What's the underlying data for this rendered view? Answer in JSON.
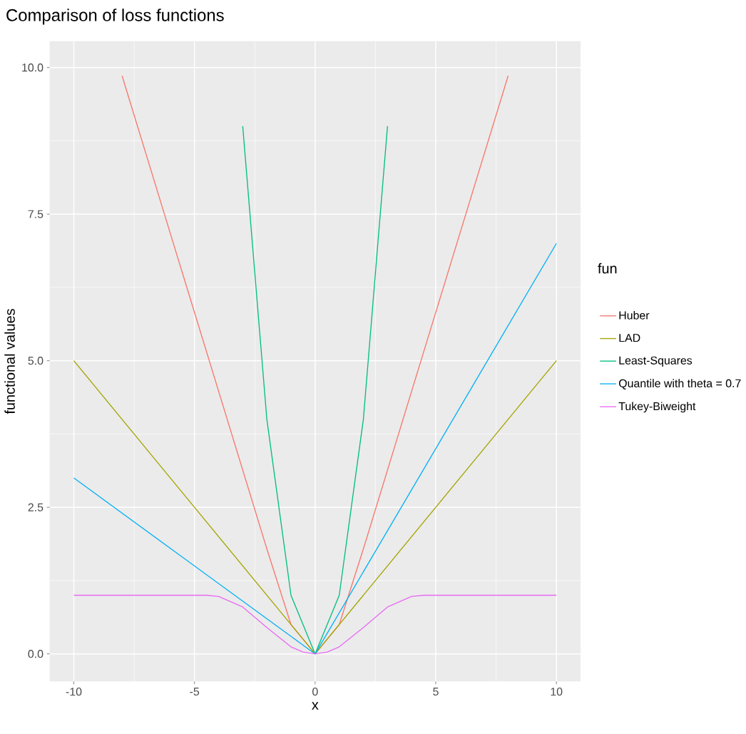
{
  "chart_data": {
    "type": "line",
    "title": "Comparison of loss functions",
    "xlabel": "x",
    "ylabel": "functional values",
    "legend_title": "fun",
    "xlim": [
      -11,
      11
    ],
    "ylim": [
      -0.47,
      10.45
    ],
    "xticks": [
      -10,
      -5,
      0,
      5,
      10
    ],
    "yticks": [
      {
        "value": 0,
        "label": "0.0"
      },
      {
        "value": 2.5,
        "label": "2.5"
      },
      {
        "value": 5,
        "label": "5.0"
      },
      {
        "value": 7.5,
        "label": "7.5"
      },
      {
        "value": 10,
        "label": "10.0"
      }
    ],
    "grid": true,
    "legend": "right",
    "marker": "none",
    "line_style": "solid",
    "series": [
      {
        "name": "Huber",
        "color": "#F8766D",
        "x": [
          -8,
          -2,
          -1,
          0,
          1,
          2,
          8
        ],
        "values": [
          9.86,
          1.79,
          0.5,
          0,
          0.5,
          1.79,
          9.86
        ]
      },
      {
        "name": "LAD",
        "color": "#A3A500",
        "x": [
          -10,
          0,
          10
        ],
        "values": [
          5,
          0,
          5
        ]
      },
      {
        "name": "Least-Squares",
        "color": "#00BF7D",
        "x": [
          -3,
          -2,
          -1,
          0,
          1,
          2,
          3
        ],
        "values": [
          9,
          4,
          1,
          0,
          1,
          4,
          9
        ]
      },
      {
        "name": "Quantile with theta = 0.7",
        "color": "#00B0F6",
        "x": [
          -10,
          0,
          10
        ],
        "values": [
          3,
          0,
          7
        ]
      },
      {
        "name": "Tukey-Biweight",
        "color": "#E76BF3",
        "x": [
          -10,
          -4.5,
          -4,
          -3,
          -2,
          -1,
          -0.5,
          0,
          0.5,
          1,
          2,
          3,
          4,
          4.5,
          10
        ],
        "values": [
          1,
          1,
          0.98,
          0.8,
          0.45,
          0.12,
          0.03,
          0,
          0.03,
          0.12,
          0.45,
          0.8,
          0.98,
          1,
          1
        ]
      }
    ]
  }
}
